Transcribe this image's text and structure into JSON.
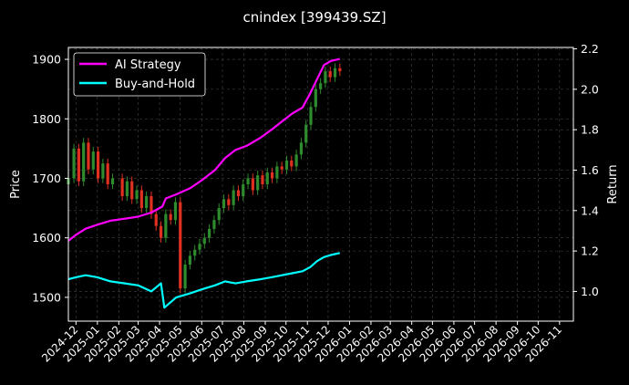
{
  "chart_data": {
    "type": "line",
    "title": "cnindex [399439.SZ]",
    "xlabel": "",
    "ylabel": "Price",
    "y2label": "Return",
    "x_ticks": [
      "2024-12",
      "2025-01",
      "2025-02",
      "2025-03",
      "2025-04",
      "2025-05",
      "2025-06",
      "2025-07",
      "2025-08",
      "2025-09",
      "2025-10",
      "2025-11",
      "2025-12",
      "2026-01",
      "2026-02",
      "2026-03",
      "2026-04",
      "2026-05",
      "2026-06",
      "2026-07",
      "2026-08",
      "2026-09",
      "2026-10",
      "2026-11"
    ],
    "x_range": [
      "2024-11-20",
      "2026-11-21"
    ],
    "ylim": [
      1460,
      1920
    ],
    "y_ticks": [
      1500,
      1600,
      1700,
      1800,
      1900
    ],
    "y2lim": [
      0.853,
      2.207
    ],
    "y2_ticks": [
      1.0,
      1.2,
      1.4,
      1.6,
      1.8,
      2.0,
      2.2
    ],
    "grid": true,
    "legend_position": "top-left",
    "colors": {
      "background": "#000000",
      "grid": "#444444",
      "up_candle": "#2e8b2e",
      "down_candle": "#e03020"
    },
    "candles": [
      [
        "2024-11-20",
        1700
      ],
      [
        "2024-11-28",
        1750
      ],
      [
        "2024-12-05",
        1695
      ],
      [
        "2024-12-12",
        1760
      ],
      [
        "2024-12-19",
        1715
      ],
      [
        "2024-12-26",
        1745
      ],
      [
        "2025-01-02",
        1700
      ],
      [
        "2025-01-09",
        1725
      ],
      [
        "2025-01-16",
        1690
      ],
      [
        "2025-01-23",
        1700
      ],
      [
        "2025-02-06",
        1670
      ],
      [
        "2025-02-13",
        1695
      ],
      [
        "2025-02-20",
        1665
      ],
      [
        "2025-02-27",
        1680
      ],
      [
        "2025-03-06",
        1650
      ],
      [
        "2025-03-13",
        1670
      ],
      [
        "2025-03-20",
        1640
      ],
      [
        "2025-03-27",
        1620
      ],
      [
        "2025-04-03",
        1600
      ],
      [
        "2025-04-10",
        1640
      ],
      [
        "2025-04-17",
        1630
      ],
      [
        "2025-04-24",
        1660
      ],
      [
        "2025-05-01",
        1515
      ],
      [
        "2025-05-08",
        1555
      ],
      [
        "2025-05-15",
        1570
      ],
      [
        "2025-05-22",
        1580
      ],
      [
        "2025-05-29",
        1590
      ],
      [
        "2025-06-05",
        1600
      ],
      [
        "2025-06-12",
        1615
      ],
      [
        "2025-06-19",
        1630
      ],
      [
        "2025-06-26",
        1650
      ],
      [
        "2025-07-03",
        1665
      ],
      [
        "2025-07-10",
        1655
      ],
      [
        "2025-07-17",
        1680
      ],
      [
        "2025-07-24",
        1670
      ],
      [
        "2025-07-31",
        1690
      ],
      [
        "2025-08-07",
        1700
      ],
      [
        "2025-08-14",
        1680
      ],
      [
        "2025-08-21",
        1705
      ],
      [
        "2025-08-28",
        1690
      ],
      [
        "2025-09-04",
        1710
      ],
      [
        "2025-09-11",
        1700
      ],
      [
        "2025-09-18",
        1720
      ],
      [
        "2025-09-25",
        1715
      ],
      [
        "2025-10-02",
        1730
      ],
      [
        "2025-10-09",
        1720
      ],
      [
        "2025-10-16",
        1740
      ],
      [
        "2025-10-23",
        1760
      ],
      [
        "2025-10-30",
        1790
      ],
      [
        "2025-11-06",
        1820
      ],
      [
        "2025-11-13",
        1850
      ],
      [
        "2025-11-20",
        1860
      ],
      [
        "2025-11-27",
        1880
      ],
      [
        "2025-12-04",
        1870
      ],
      [
        "2025-12-11",
        1885
      ],
      [
        "2025-12-18",
        1880
      ]
    ],
    "series": [
      {
        "name": "AI Strategy",
        "color": "#ff00ff",
        "axis": "right",
        "points": [
          [
            "2024-11-20",
            1.25
          ],
          [
            "2024-12-01",
            1.28
          ],
          [
            "2024-12-15",
            1.31
          ],
          [
            "2025-01-01",
            1.33
          ],
          [
            "2025-01-20",
            1.35
          ],
          [
            "2025-02-10",
            1.36
          ],
          [
            "2025-03-01",
            1.37
          ],
          [
            "2025-03-20",
            1.39
          ],
          [
            "2025-04-05",
            1.42
          ],
          [
            "2025-04-10",
            1.46
          ],
          [
            "2025-04-25",
            1.48
          ],
          [
            "2025-05-15",
            1.51
          ],
          [
            "2025-06-01",
            1.55
          ],
          [
            "2025-06-20",
            1.6
          ],
          [
            "2025-07-05",
            1.66
          ],
          [
            "2025-07-20",
            1.7
          ],
          [
            "2025-08-05",
            1.72
          ],
          [
            "2025-08-25",
            1.76
          ],
          [
            "2025-09-10",
            1.8
          ],
          [
            "2025-09-25",
            1.84
          ],
          [
            "2025-10-10",
            1.88
          ],
          [
            "2025-10-25",
            1.91
          ],
          [
            "2025-11-05",
            1.98
          ],
          [
            "2025-11-15",
            2.05
          ],
          [
            "2025-11-25",
            2.12
          ],
          [
            "2025-12-05",
            2.14
          ],
          [
            "2025-12-18",
            2.15
          ]
        ]
      },
      {
        "name": "Buy-and-Hold",
        "color": "#00ffff",
        "axis": "right",
        "points": [
          [
            "2024-11-20",
            1.06
          ],
          [
            "2024-12-01",
            1.07
          ],
          [
            "2024-12-15",
            1.08
          ],
          [
            "2025-01-01",
            1.07
          ],
          [
            "2025-01-20",
            1.05
          ],
          [
            "2025-02-10",
            1.04
          ],
          [
            "2025-03-01",
            1.03
          ],
          [
            "2025-03-20",
            1.0
          ],
          [
            "2025-04-03",
            1.04
          ],
          [
            "2025-04-08",
            0.92
          ],
          [
            "2025-04-25",
            0.97
          ],
          [
            "2025-05-15",
            0.99
          ],
          [
            "2025-06-01",
            1.01
          ],
          [
            "2025-06-20",
            1.03
          ],
          [
            "2025-07-05",
            1.05
          ],
          [
            "2025-07-20",
            1.04
          ],
          [
            "2025-08-05",
            1.05
          ],
          [
            "2025-08-25",
            1.06
          ],
          [
            "2025-09-10",
            1.07
          ],
          [
            "2025-09-25",
            1.08
          ],
          [
            "2025-10-10",
            1.09
          ],
          [
            "2025-10-25",
            1.1
          ],
          [
            "2025-11-05",
            1.12
          ],
          [
            "2025-11-15",
            1.15
          ],
          [
            "2025-11-25",
            1.17
          ],
          [
            "2025-12-05",
            1.18
          ],
          [
            "2025-12-18",
            1.19
          ]
        ]
      }
    ]
  }
}
